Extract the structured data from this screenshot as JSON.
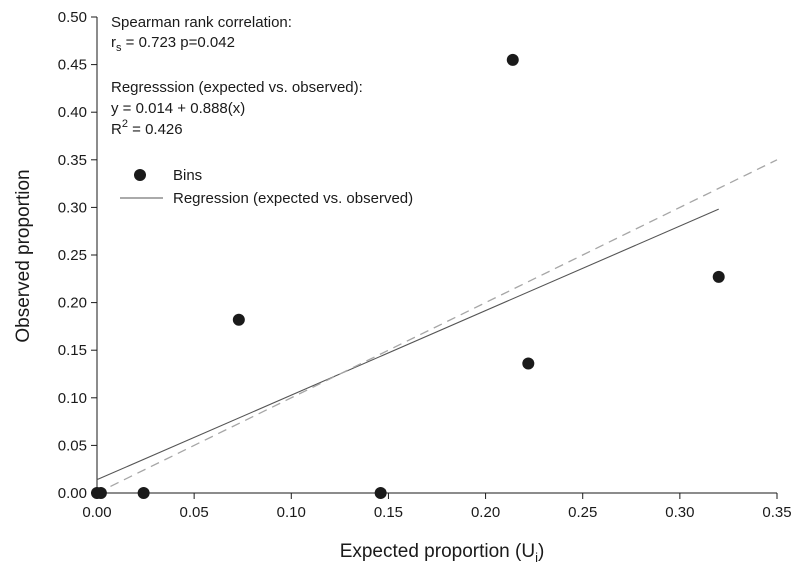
{
  "chart_data": {
    "type": "scatter",
    "xlabel": "Expected proportion (U",
    "xlabel_sub": "i",
    "xlabel_close": ")",
    "ylabel": "Observed proportion",
    "xlim": [
      0,
      0.35
    ],
    "ylim": [
      0,
      0.5
    ],
    "x_ticks": [
      "0.00",
      "0.05",
      "0.10",
      "0.15",
      "0.20",
      "0.25",
      "0.30",
      "0.35"
    ],
    "y_ticks": [
      "0.00",
      "0.05",
      "0.10",
      "0.15",
      "0.20",
      "0.25",
      "0.30",
      "0.35",
      "0.40",
      "0.45",
      "0.50"
    ],
    "grid": false,
    "legend_position": "upper-left",
    "annotations": {
      "spearman_title": "Spearman rank correlation:",
      "spearman_r": "r",
      "spearman_r_sub": "s",
      "spearman_value": " = 0.723 p=0.042",
      "regression_title": "Regresssion (expected vs. observed):",
      "regression_equation": "y = 0.014 + 0.888(x)",
      "r2_label": "R",
      "r2_sup": "2",
      "r2_value": " = 0.426"
    },
    "series": [
      {
        "name": "Bins",
        "kind": "points",
        "color": "#1a1a1a",
        "points": [
          {
            "x": 0.0,
            "y": 0.0
          },
          {
            "x": 0.002,
            "y": 0.0
          },
          {
            "x": 0.024,
            "y": 0.0
          },
          {
            "x": 0.073,
            "y": 0.182
          },
          {
            "x": 0.146,
            "y": 0.0
          },
          {
            "x": 0.214,
            "y": 0.455
          },
          {
            "x": 0.222,
            "y": 0.136
          },
          {
            "x": 0.32,
            "y": 0.227
          }
        ]
      },
      {
        "name": "Regression (expected vs. observed)",
        "kind": "line",
        "color": "#555555",
        "intercept": 0.014,
        "slope": 0.888,
        "x_range": [
          0,
          0.32
        ]
      },
      {
        "kind": "identity",
        "color": "#a6a6a6",
        "dashed": true,
        "x_range": [
          0,
          0.35
        ]
      }
    ]
  }
}
